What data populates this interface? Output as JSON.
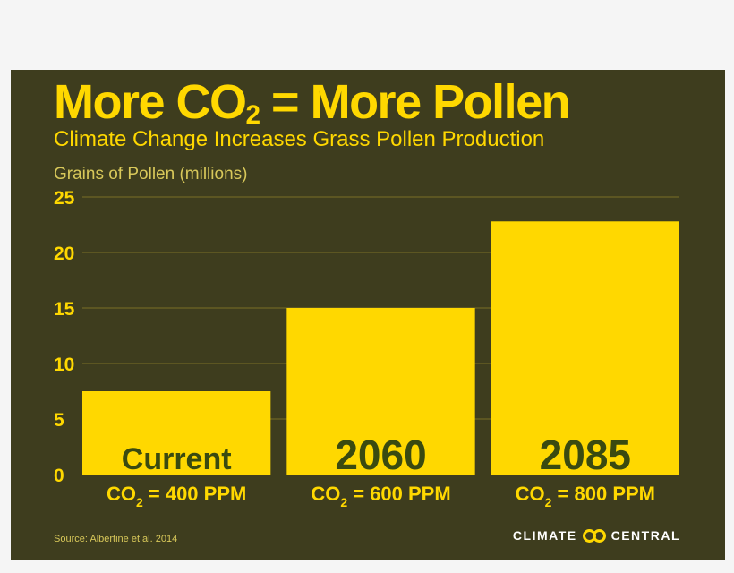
{
  "header": {
    "title_main": "More CO",
    "title_sub": "2",
    "title_rest": " = More Pollen",
    "subtitle": "Climate Change Increases Grass Pollen Production"
  },
  "footer": {
    "source": "Source: Albertine et al. 2014",
    "brand_left": "CLIMATE",
    "brand_right": "CENTRAL",
    "brand_icon": "double-ring-logo-icon"
  },
  "colors": {
    "background": "#3e3d1e",
    "accent": "#ffd800",
    "bar": "#ffd800",
    "bar_label": "#3a4a10",
    "grid": "#7a6e26"
  },
  "chart_data": {
    "type": "bar",
    "title": "More CO2 = More Pollen",
    "subtitle": "Climate Change Increases Grass Pollen Production",
    "ylabel": "Grains of Pollen (millions)",
    "xlabel": "",
    "ylim": [
      0,
      25
    ],
    "yticks": [
      0,
      5,
      10,
      15,
      20,
      25
    ],
    "grid": true,
    "categories": [
      "CO2 = 400 PPM",
      "CO2 = 600 PPM",
      "CO2 = 800 PPM"
    ],
    "category_labels": [
      {
        "pre": "CO",
        "sub": "2",
        "post": " = 400 PPM"
      },
      {
        "pre": "CO",
        "sub": "2",
        "post": " = 600 PPM"
      },
      {
        "pre": "CO",
        "sub": "2",
        "post": " = 800 PPM"
      }
    ],
    "bar_names": [
      "Current",
      "2060",
      "2085"
    ],
    "values": [
      7.5,
      15,
      22.8
    ]
  }
}
